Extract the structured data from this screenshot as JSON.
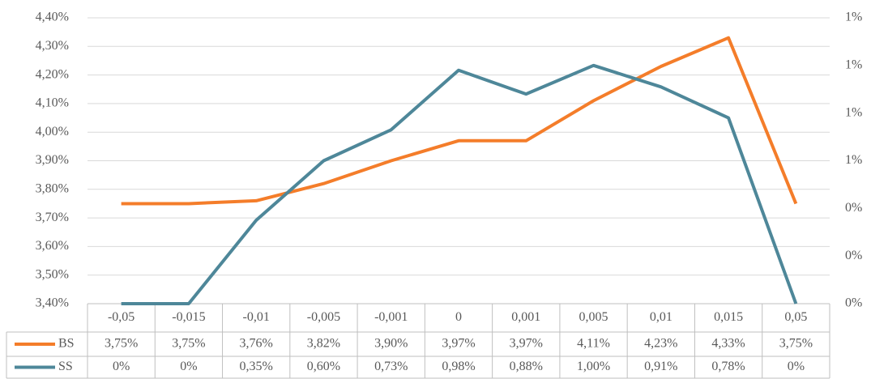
{
  "chart_data": {
    "type": "line",
    "categories": [
      "-0,05",
      "-0,015",
      "-0,01",
      "-0,005",
      "-0,001",
      "0",
      "0,001",
      "0,005",
      "0,01",
      "0,015",
      "0,05"
    ],
    "series": [
      {
        "name": "BS",
        "color": "#f47d2a",
        "values": [
          3.75,
          3.75,
          3.76,
          3.82,
          3.9,
          3.97,
          3.97,
          4.11,
          4.23,
          4.33,
          3.75
        ],
        "value_labels": [
          "3,75%",
          "3,75%",
          "3,76%",
          "3,82%",
          "3,90%",
          "3,97%",
          "3,97%",
          "4,11%",
          "4,23%",
          "4,33%",
          "3,75%"
        ]
      },
      {
        "name": "SS",
        "color": "#4e8799",
        "axis": "y2",
        "values": [
          0,
          0,
          0.35,
          0.6,
          0.73,
          0.98,
          0.88,
          1.0,
          0.91,
          0.78,
          0
        ],
        "value_labels": [
          "0%",
          "0%",
          "0,35%",
          "0,60%",
          "0,73%",
          "0,98%",
          "0,88%",
          "1,00%",
          "0,91%",
          "0,78%",
          "0%"
        ]
      }
    ],
    "ylim": [
      3.4,
      4.4
    ],
    "yticks": [
      {
        "value": 3.4,
        "label": "3,40%"
      },
      {
        "value": 3.5,
        "label": "3,50%"
      },
      {
        "value": 3.6,
        "label": "3,60%"
      },
      {
        "value": 3.7,
        "label": "3,70%"
      },
      {
        "value": 3.8,
        "label": "3,80%"
      },
      {
        "value": 3.9,
        "label": "3,90%"
      },
      {
        "value": 4.0,
        "label": "4,00%"
      },
      {
        "value": 4.1,
        "label": "4,10%"
      },
      {
        "value": 4.2,
        "label": "4,20%"
      },
      {
        "value": 4.3,
        "label": "4,30%"
      },
      {
        "value": 4.4,
        "label": "4,40%"
      }
    ],
    "y2lim": [
      0,
      1.2
    ],
    "y2ticks": [
      {
        "value": 0,
        "label": "0%"
      },
      {
        "value": 0.2,
        "label": "0%"
      },
      {
        "value": 0.4,
        "label": "0%"
      },
      {
        "value": 0.6,
        "label": "1%"
      },
      {
        "value": 0.8,
        "label": "1%"
      },
      {
        "value": 1.0,
        "label": "1%"
      },
      {
        "value": 1.2,
        "label": "1%"
      }
    ],
    "grid": true
  }
}
